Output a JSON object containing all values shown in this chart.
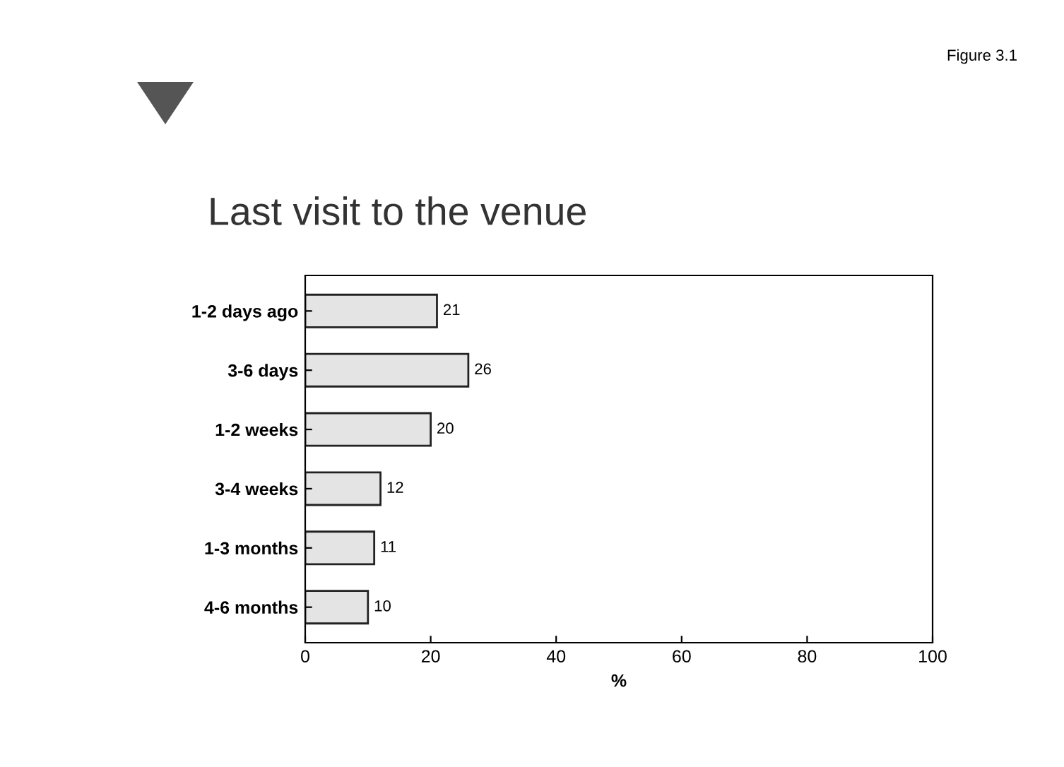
{
  "chart_data": {
    "type": "bar",
    "orientation": "horizontal",
    "title": "Last visit to the venue",
    "annotations": [
      "Figure 3.1"
    ],
    "xlabel": "%",
    "categories": [
      "1-2 days ago",
      "3-6 days",
      "1-2 weeks",
      "3-4 weeks",
      "1-3 months",
      "4-6 months"
    ],
    "values": [
      21,
      26,
      20,
      12,
      11,
      10
    ],
    "color": "#e4e4e4",
    "data_labels": true,
    "xlim": [
      0,
      100
    ],
    "xticks": [
      0,
      20,
      40,
      60,
      80,
      100
    ],
    "grid": false,
    "legend": false
  }
}
